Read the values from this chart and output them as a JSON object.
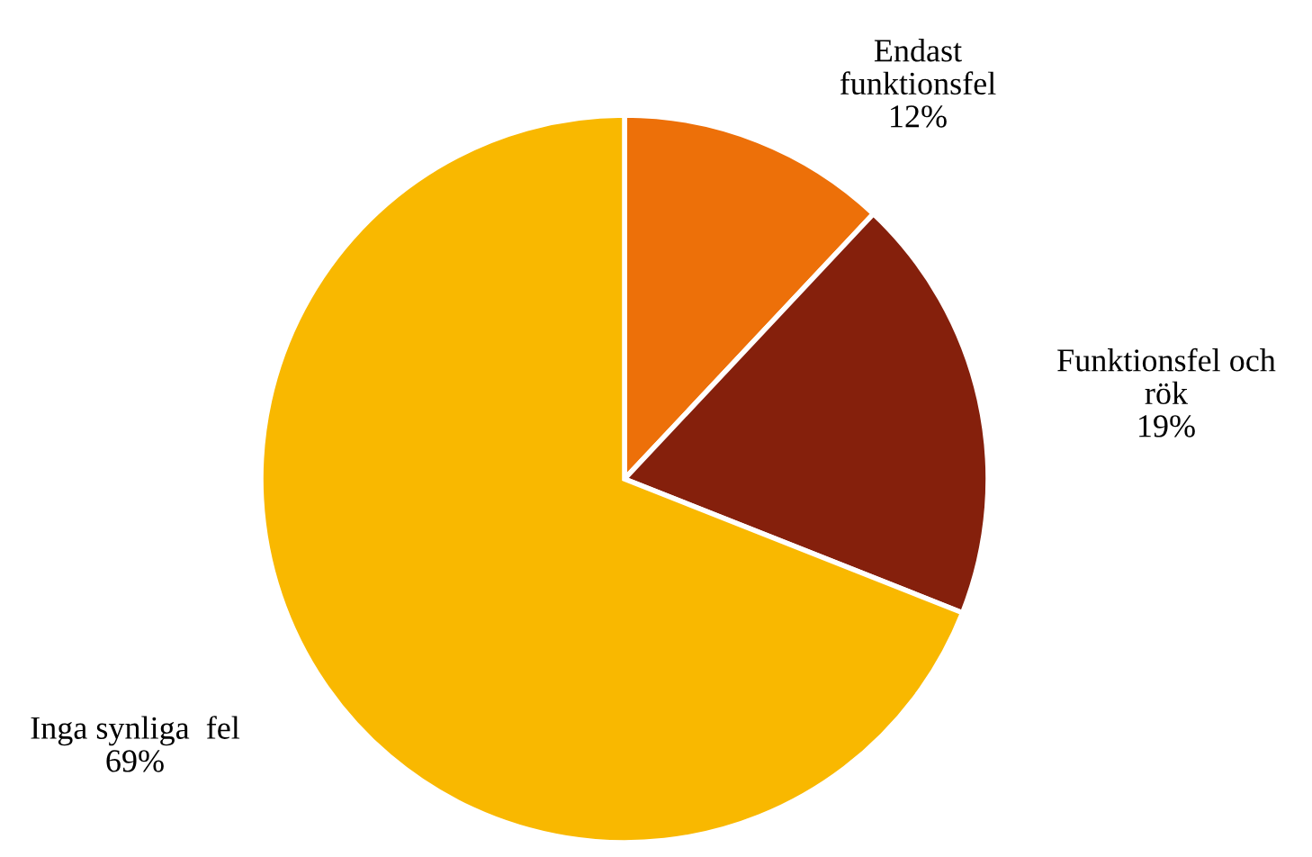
{
  "chart_data": {
    "type": "pie",
    "categories": [
      "Endast\nfunktionsfel",
      "Funktionsfel och\nrök",
      "Inga synliga  fel"
    ],
    "values": [
      12,
      19,
      69
    ],
    "colors": [
      "#ed7009",
      "#85200c",
      "#f9b800"
    ],
    "value_labels": [
      "12%",
      "19%",
      "69%"
    ]
  }
}
